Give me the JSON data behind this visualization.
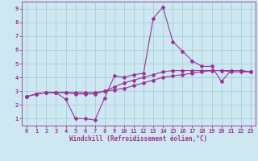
{
  "background_color": "#cde8f0",
  "grid_color": "#aaccdd",
  "line_color": "#993399",
  "xlabel": "Windchill (Refroidissement éolien,°C)",
  "xlim": [
    -0.5,
    23.5
  ],
  "ylim": [
    0.5,
    9.5
  ],
  "xticks": [
    0,
    1,
    2,
    3,
    4,
    5,
    6,
    7,
    8,
    9,
    10,
    11,
    12,
    13,
    14,
    15,
    16,
    17,
    18,
    19,
    20,
    21,
    22,
    23
  ],
  "yticks": [
    1,
    2,
    3,
    4,
    5,
    6,
    7,
    8,
    9
  ],
  "series1_x": [
    0,
    1,
    2,
    3,
    4,
    5,
    6,
    7,
    8,
    9,
    10,
    11,
    12,
    13,
    14,
    15,
    16,
    17,
    18,
    19,
    20,
    21,
    22,
    23
  ],
  "series1_y": [
    2.6,
    2.8,
    2.9,
    2.9,
    2.4,
    1.0,
    1.0,
    0.9,
    2.5,
    4.1,
    4.0,
    4.2,
    4.3,
    8.3,
    9.1,
    6.6,
    5.9,
    5.2,
    4.8,
    4.8,
    3.7,
    4.5,
    4.5,
    4.4
  ],
  "series2_x": [
    0,
    1,
    2,
    3,
    4,
    5,
    6,
    7,
    8,
    9,
    10,
    11,
    12,
    13,
    14,
    15,
    16,
    17,
    18,
    19,
    20,
    21,
    22,
    23
  ],
  "series2_y": [
    2.6,
    2.8,
    2.9,
    2.9,
    2.9,
    2.9,
    2.9,
    2.9,
    3.0,
    3.1,
    3.2,
    3.4,
    3.6,
    3.8,
    4.0,
    4.1,
    4.2,
    4.3,
    4.4,
    4.5,
    4.5,
    4.5,
    4.5,
    4.4
  ],
  "series3_x": [
    0,
    1,
    2,
    3,
    4,
    5,
    6,
    7,
    8,
    9,
    10,
    11,
    12,
    13,
    14,
    15,
    16,
    17,
    18,
    19,
    20,
    21,
    22,
    23
  ],
  "series3_y": [
    2.6,
    2.8,
    2.9,
    2.9,
    2.9,
    2.8,
    2.8,
    2.8,
    3.0,
    3.3,
    3.6,
    3.8,
    4.0,
    4.2,
    4.4,
    4.5,
    4.5,
    4.5,
    4.5,
    4.5,
    4.5,
    4.4,
    4.4,
    4.4
  ],
  "xlabel_fontsize": 5.5,
  "tick_fontsize": 5.0,
  "linewidth": 0.8,
  "markersize": 2.0
}
